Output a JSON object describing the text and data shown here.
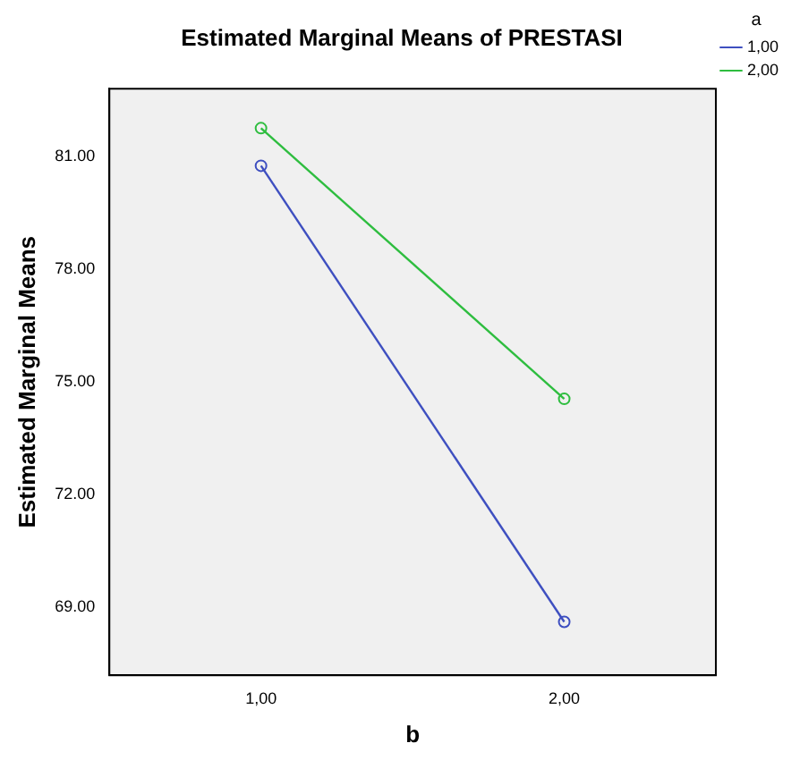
{
  "chart_data": {
    "type": "line",
    "title": "Estimated Marginal Means of PRESTASI",
    "xlabel": "b",
    "ylabel": "Estimated Marginal Means",
    "legend_title": "a",
    "categories": [
      "1,00",
      "2,00"
    ],
    "series": [
      {
        "name": "1,00",
        "color": "#3e4fc0",
        "values": [
          80.75,
          68.62
        ]
      },
      {
        "name": "2,00",
        "color": "#2ebd3f",
        "values": [
          81.75,
          74.55
        ]
      }
    ],
    "ylim": [
      67.2,
      82.8
    ],
    "yticks": [
      {
        "value": 69,
        "label": "69.00"
      },
      {
        "value": 72,
        "label": "72.00"
      },
      {
        "value": 75,
        "label": "75.00"
      },
      {
        "value": 78,
        "label": "78.00"
      },
      {
        "value": 81,
        "label": "81.00"
      }
    ],
    "grid": false,
    "legend": "top right",
    "marker": "circle",
    "line_style": "solid"
  }
}
